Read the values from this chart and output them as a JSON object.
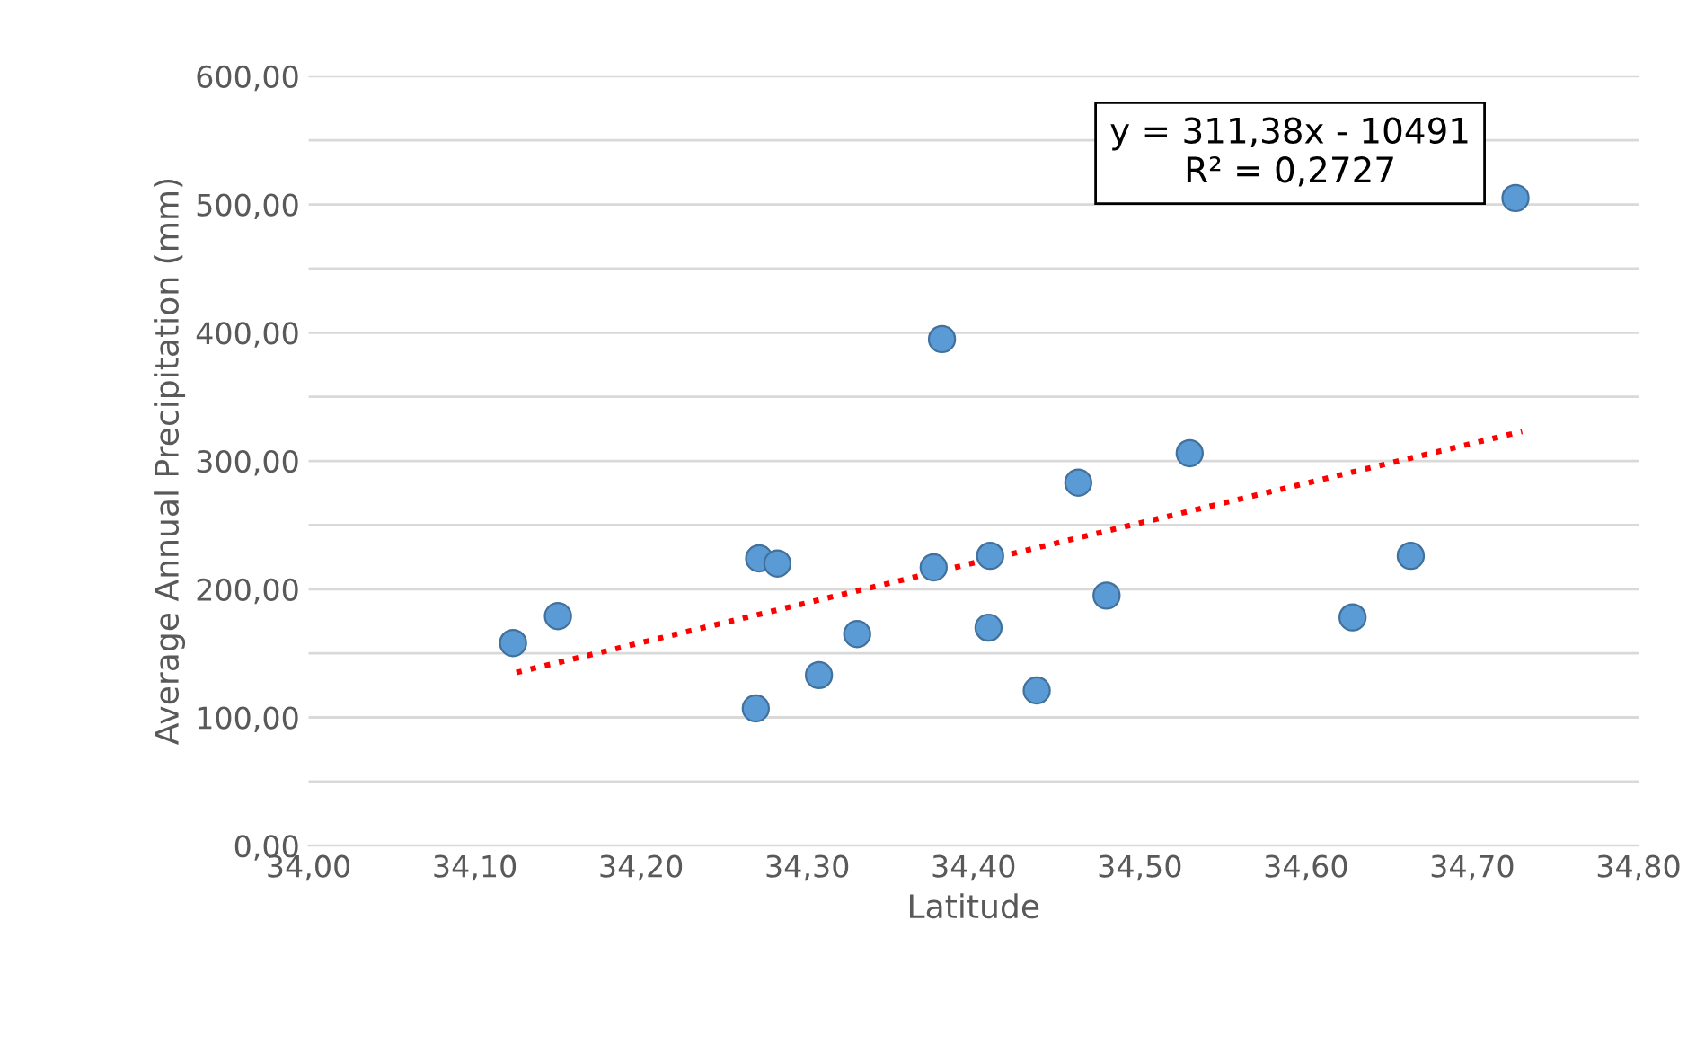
{
  "chart_data": {
    "type": "scatter",
    "xlabel": "Latitude",
    "ylabel": "Average Annual Precipitation (mm)",
    "annotations": [
      "y = 311,38x - 10491\nR² = 0,2727"
    ],
    "series": [
      {
        "color": "#5b9bd5",
        "marker": "circle",
        "x": [
          34.123,
          34.15,
          34.271,
          34.282,
          34.269,
          34.307,
          34.33,
          34.376,
          34.381,
          34.41,
          34.409,
          34.438,
          34.463,
          34.48,
          34.53,
          34.628,
          34.663,
          34.726
        ],
        "values": [
          158,
          179,
          224,
          220,
          107,
          133,
          165,
          217,
          395,
          226,
          170,
          121,
          283,
          195,
          306,
          178,
          226,
          505
        ]
      },
      {
        "type": "line",
        "color": "#ff0000",
        "line_style": "dotted",
        "marker": "none",
        "x": [
          34.125,
          34.73
        ],
        "values": [
          135,
          323
        ]
      }
    ],
    "xlim": [
      34.0,
      34.8
    ],
    "xticks": [
      {
        "value": 34.0,
        "label": "34,00"
      },
      {
        "value": 34.1,
        "label": "34,10"
      },
      {
        "value": 34.2,
        "label": "34,20"
      },
      {
        "value": 34.3,
        "label": "34,30"
      },
      {
        "value": 34.4,
        "label": "34,40"
      },
      {
        "value": 34.5,
        "label": "34,50"
      },
      {
        "value": 34.6,
        "label": "34,60"
      },
      {
        "value": 34.7,
        "label": "34,70"
      },
      {
        "value": 34.8,
        "label": "34,80"
      }
    ],
    "ylim": [
      0,
      600
    ],
    "yticks": [
      {
        "value": 0,
        "label": "0,00"
      },
      {
        "value": 50,
        "label": null
      },
      {
        "value": 100,
        "label": "100,00"
      },
      {
        "value": 150,
        "label": null
      },
      {
        "value": 200,
        "label": "200,00"
      },
      {
        "value": 250,
        "label": null
      },
      {
        "value": 300,
        "label": "300,00"
      },
      {
        "value": 350,
        "label": null
      },
      {
        "value": 400,
        "label": "400,00"
      },
      {
        "value": 450,
        "label": null
      },
      {
        "value": 500,
        "label": "500,00"
      },
      {
        "value": 550,
        "label": null
      },
      {
        "value": 600,
        "label": "600,00"
      }
    ],
    "grid": "y",
    "legend": false
  }
}
